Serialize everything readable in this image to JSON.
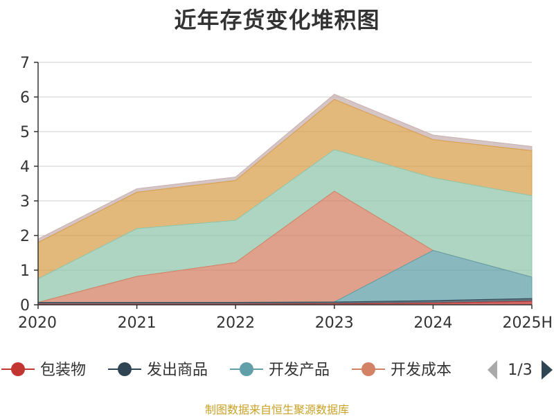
{
  "chart_data": {
    "type": "area",
    "stacked": true,
    "title": "近年存货变化堆积图",
    "ylabel": "",
    "xlabel": "",
    "x": [
      "2020",
      "2021",
      "2022",
      "2023",
      "2024",
      "2025H"
    ],
    "ylim": [
      0,
      7
    ],
    "yticks": [
      0,
      1,
      2,
      3,
      4,
      5,
      6,
      7
    ],
    "grid": true,
    "legend_position": "bottom",
    "series": [
      {
        "name": "包装物",
        "color": "#c23531",
        "values": [
          0.02,
          0.02,
          0.02,
          0.03,
          0.05,
          0.1
        ]
      },
      {
        "name": "发出商品",
        "color": "#2f4554",
        "values": [
          0.05,
          0.05,
          0.05,
          0.05,
          0.07,
          0.08
        ]
      },
      {
        "name": "开发产品",
        "color": "#61a0a8",
        "values": [
          0.0,
          0.0,
          0.0,
          0.0,
          1.45,
          0.62
        ]
      },
      {
        "name": "开发成本",
        "color": "#d48265",
        "values": [
          0.0,
          0.75,
          1.15,
          3.2,
          0.0,
          0.0
        ]
      },
      {
        "name": "",
        "color": "#91c7ae",
        "values": [
          0.68,
          1.38,
          1.22,
          1.2,
          2.1,
          2.35
        ]
      },
      {
        "name": "",
        "color": "#d9a04f",
        "values": [
          1.05,
          1.05,
          1.15,
          1.45,
          1.1,
          1.3
        ]
      },
      {
        "name": "",
        "color": "#c8b1b1",
        "values": [
          0.1,
          0.1,
          0.1,
          0.15,
          0.13,
          0.12
        ]
      }
    ]
  },
  "legend": {
    "items": [
      {
        "label": "包装物",
        "color": "#c23531"
      },
      {
        "label": "发出商品",
        "color": "#2f4554"
      },
      {
        "label": "开发产品",
        "color": "#61a0a8"
      },
      {
        "label": "开发成本",
        "color": "#d48265"
      }
    ],
    "page_indicator": "1/3"
  },
  "footer": {
    "source_text": "制图数据来自恒生聚源数据库"
  }
}
